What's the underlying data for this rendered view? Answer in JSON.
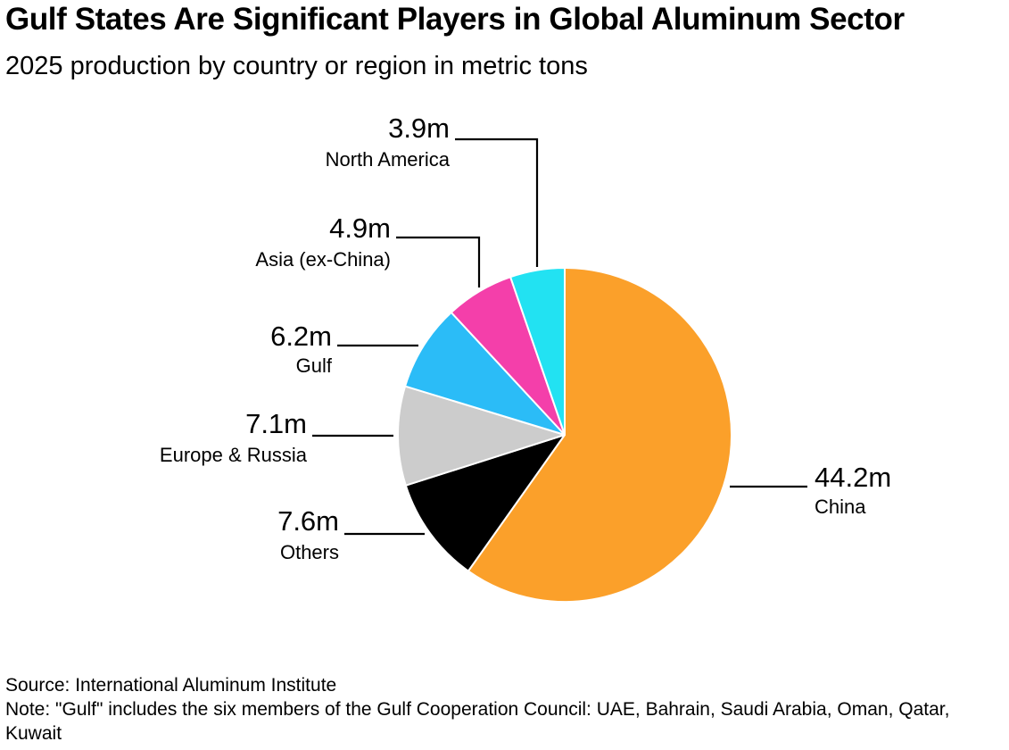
{
  "chart_data": {
    "type": "pie",
    "title": "Gulf States Are Significant Players in Global Aluminum Sector",
    "subtitle": "2025 production by country or region in metric tons",
    "unit": "metric tons",
    "slices": [
      {
        "name": "China",
        "value": 44.2,
        "value_label": "44.2m",
        "color": "#FBA02A"
      },
      {
        "name": "Others",
        "value": 7.6,
        "value_label": "7.6m",
        "color": "#000000"
      },
      {
        "name": "Europe & Russia",
        "value": 7.1,
        "value_label": "7.1m",
        "color": "#CCCCCC"
      },
      {
        "name": "Gulf",
        "value": 6.2,
        "value_label": "6.2m",
        "color": "#2BBCF7"
      },
      {
        "name": "Asia (ex-China)",
        "value": 4.9,
        "value_label": "4.9m",
        "color": "#F43FAA"
      },
      {
        "name": "North America",
        "value": 3.9,
        "value_label": "3.9m",
        "color": "#22E2F2"
      }
    ]
  },
  "footer": {
    "source": "Source: International Aluminum Institute",
    "note": "Note: \"Gulf\" includes the six members of the Gulf Cooperation Council: UAE, Bahrain, Saudi Arabia, Oman, Qatar, Kuwait"
  }
}
